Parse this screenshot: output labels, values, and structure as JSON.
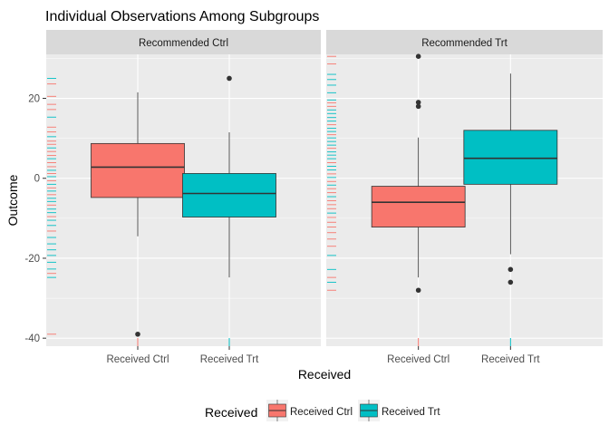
{
  "chart_data": {
    "type": "boxplot",
    "title": "Individual Observations Among Subgroups",
    "xlabel": "Received",
    "ylabel": "Outcome",
    "ylim": [
      -42,
      31
    ],
    "yticks": [
      -40,
      -20,
      0,
      20
    ],
    "ytick_labels": [
      "-40",
      "-20",
      "0",
      "20"
    ],
    "categories": [
      "Received Ctrl",
      "Received Trt"
    ],
    "legend": {
      "title": "Received",
      "position": "bottom",
      "entries": [
        "Received Ctrl",
        "Received Trt"
      ]
    },
    "colors": {
      "ctrl": "#F8766D",
      "trt": "#00BFC4",
      "panel_bg": "#EBEBEB",
      "strip_bg": "#D9D9D9"
    },
    "panels": [
      {
        "strip": "Recommended Ctrl",
        "boxes": [
          {
            "category": "Received Ctrl",
            "color": "ctrl",
            "min": -14.5,
            "q1": -4.8,
            "median": 2.8,
            "q3": 8.7,
            "max": 21.5,
            "outliers": [
              -39
            ]
          },
          {
            "category": "Received Trt",
            "color": "trt",
            "min": -24.8,
            "q1": -9.7,
            "median": -3.8,
            "q3": 1.2,
            "max": 11.5,
            "outliers": [
              25
            ]
          }
        ],
        "rug": [
          {
            "y": 25,
            "color": "trt"
          },
          {
            "y": 23.6,
            "color": "ctrl"
          },
          {
            "y": 20.5,
            "color": "ctrl"
          },
          {
            "y": 18.5,
            "color": "ctrl"
          },
          {
            "y": 17.2,
            "color": "ctrl"
          },
          {
            "y": 15.3,
            "color": "trt"
          },
          {
            "y": 12.8,
            "color": "ctrl"
          },
          {
            "y": 11.6,
            "color": "ctrl"
          },
          {
            "y": 10.4,
            "color": "trt"
          },
          {
            "y": 9.3,
            "color": "ctrl"
          },
          {
            "y": 8.5,
            "color": "ctrl"
          },
          {
            "y": 7.6,
            "color": "trt"
          },
          {
            "y": 6.7,
            "color": "ctrl"
          },
          {
            "y": 5.7,
            "color": "ctrl"
          },
          {
            "y": 4.9,
            "color": "trt"
          },
          {
            "y": 3.9,
            "color": "ctrl"
          },
          {
            "y": 2.9,
            "color": "ctrl"
          },
          {
            "y": 2.0,
            "color": "trt"
          },
          {
            "y": 1.2,
            "color": "ctrl"
          },
          {
            "y": 0.4,
            "color": "trt"
          },
          {
            "y": -0.6,
            "color": "ctrl"
          },
          {
            "y": -1.5,
            "color": "trt"
          },
          {
            "y": -2.4,
            "color": "ctrl"
          },
          {
            "y": -3.2,
            "color": "trt"
          },
          {
            "y": -4.1,
            "color": "ctrl"
          },
          {
            "y": -5.0,
            "color": "trt"
          },
          {
            "y": -5.8,
            "color": "trt"
          },
          {
            "y": -6.7,
            "color": "ctrl"
          },
          {
            "y": -7.7,
            "color": "trt"
          },
          {
            "y": -8.6,
            "color": "trt"
          },
          {
            "y": -9.6,
            "color": "ctrl"
          },
          {
            "y": -10.5,
            "color": "trt"
          },
          {
            "y": -11.8,
            "color": "trt"
          },
          {
            "y": -13.2,
            "color": "ctrl"
          },
          {
            "y": -14.8,
            "color": "trt"
          },
          {
            "y": -16.4,
            "color": "trt"
          },
          {
            "y": -17.9,
            "color": "trt"
          },
          {
            "y": -19.3,
            "color": "trt"
          },
          {
            "y": -21.0,
            "color": "trt"
          },
          {
            "y": -22.7,
            "color": "trt"
          },
          {
            "y": -23.8,
            "color": "ctrl"
          },
          {
            "y": -24.8,
            "color": "trt"
          },
          {
            "y": -39,
            "color": "ctrl"
          }
        ]
      },
      {
        "strip": "Recommended Trt",
        "boxes": [
          {
            "category": "Received Ctrl",
            "color": "ctrl",
            "min": -24.8,
            "q1": -12.2,
            "median": -6.0,
            "q3": -2.0,
            "max": 10.2,
            "outliers": [
              30.5,
              19,
              18,
              -28
            ]
          },
          {
            "category": "Received Trt",
            "color": "trt",
            "min": -19.0,
            "q1": -1.5,
            "median": 5.0,
            "q3": 12.0,
            "max": 26.2,
            "outliers": [
              -22.8,
              -26
            ]
          }
        ],
        "rug": [
          {
            "y": 30.5,
            "color": "ctrl"
          },
          {
            "y": 28.6,
            "color": "ctrl"
          },
          {
            "y": 26.0,
            "color": "trt"
          },
          {
            "y": 24.7,
            "color": "trt"
          },
          {
            "y": 23.3,
            "color": "trt"
          },
          {
            "y": 21.4,
            "color": "trt"
          },
          {
            "y": 19.6,
            "color": "trt"
          },
          {
            "y": 18.9,
            "color": "ctrl"
          },
          {
            "y": 18.0,
            "color": "ctrl"
          },
          {
            "y": 17.1,
            "color": "trt"
          },
          {
            "y": 16.2,
            "color": "trt"
          },
          {
            "y": 15.2,
            "color": "trt"
          },
          {
            "y": 14.3,
            "color": "trt"
          },
          {
            "y": 13.4,
            "color": "ctrl"
          },
          {
            "y": 12.5,
            "color": "trt"
          },
          {
            "y": 11.7,
            "color": "trt"
          },
          {
            "y": 10.9,
            "color": "ctrl"
          },
          {
            "y": 10.1,
            "color": "trt"
          },
          {
            "y": 9.2,
            "color": "trt"
          },
          {
            "y": 8.3,
            "color": "trt"
          },
          {
            "y": 7.5,
            "color": "ctrl"
          },
          {
            "y": 6.6,
            "color": "trt"
          },
          {
            "y": 5.8,
            "color": "trt"
          },
          {
            "y": 4.9,
            "color": "trt"
          },
          {
            "y": 3.9,
            "color": "ctrl"
          },
          {
            "y": 3.0,
            "color": "trt"
          },
          {
            "y": 2.1,
            "color": "trt"
          },
          {
            "y": 1.1,
            "color": "ctrl"
          },
          {
            "y": 0.2,
            "color": "trt"
          },
          {
            "y": -0.8,
            "color": "ctrl"
          },
          {
            "y": -1.7,
            "color": "trt"
          },
          {
            "y": -2.6,
            "color": "ctrl"
          },
          {
            "y": -3.6,
            "color": "ctrl"
          },
          {
            "y": -4.6,
            "color": "trt"
          },
          {
            "y": -5.6,
            "color": "ctrl"
          },
          {
            "y": -6.6,
            "color": "ctrl"
          },
          {
            "y": -7.6,
            "color": "ctrl"
          },
          {
            "y": -8.7,
            "color": "trt"
          },
          {
            "y": -9.8,
            "color": "ctrl"
          },
          {
            "y": -11.0,
            "color": "ctrl"
          },
          {
            "y": -12.2,
            "color": "ctrl"
          },
          {
            "y": -13.6,
            "color": "ctrl"
          },
          {
            "y": -15.2,
            "color": "ctrl"
          },
          {
            "y": -17.0,
            "color": "ctrl"
          },
          {
            "y": -19.3,
            "color": "trt"
          },
          {
            "y": -22.8,
            "color": "trt"
          },
          {
            "y": -24.8,
            "color": "ctrl"
          },
          {
            "y": -26.0,
            "color": "trt"
          },
          {
            "y": -28.0,
            "color": "ctrl"
          }
        ]
      }
    ]
  }
}
